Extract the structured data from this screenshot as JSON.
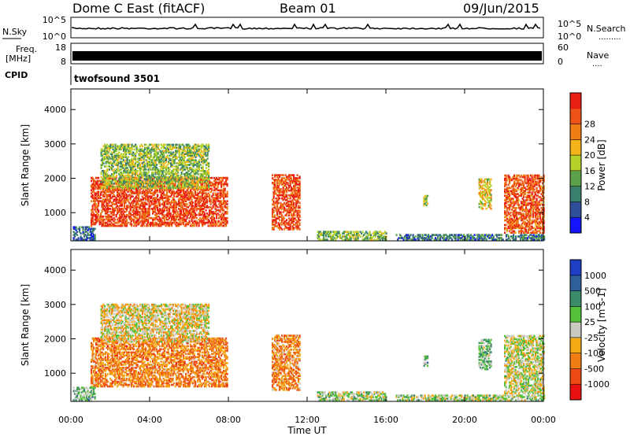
{
  "header": {
    "title": "Dome C East (fitACF)",
    "beam": "Beam 01",
    "date": "09/Jun/2015"
  },
  "noise_panel": {
    "left_label": "N.Sky",
    "right_label": "N.Search",
    "right_legend": ".........",
    "left_ticks": [
      "10^5",
      "10^0"
    ],
    "right_ticks": [
      "10^5",
      "10^0"
    ]
  },
  "freq_panel": {
    "left_label_1": "Freq.",
    "left_label_2": "[MHz]",
    "left_ticks": [
      "18",
      "8"
    ],
    "right_label": "Nave",
    "right_legend": "....",
    "right_ticks": [
      "60",
      "0"
    ]
  },
  "cpid": {
    "label": "CPID",
    "program": "twofsound 3501"
  },
  "x_axis": {
    "label": "Time UT",
    "ticks": [
      "00:00",
      "04:00",
      "08:00",
      "12:00",
      "16:00",
      "20:00",
      "00:00"
    ]
  },
  "colors": {
    "power": [
      "#1414ff",
      "#2f4f9a",
      "#3a7f6e",
      "#5ca24b",
      "#b6d22a",
      "#f5b51a",
      "#f07e14",
      "#ee5216",
      "#e81e12"
    ],
    "velocity": [
      "#e81010",
      "#ee4a14",
      "#f07e14",
      "#f5aa14",
      "#c9c9c0",
      "#55c03a",
      "#3b8c6a",
      "#2f5f9a",
      "#1e3ec4"
    ]
  },
  "chart_data": [
    {
      "type": "heatmap",
      "name": "power",
      "xlabel": "",
      "ylabel": "Slant Range [km]",
      "xlim": [
        0,
        24
      ],
      "ylim": [
        180,
        4600
      ],
      "yticks": [
        "1000",
        "2000",
        "3000",
        "4000"
      ],
      "colorbar_label": "Power [dB]",
      "colorbar_ticks": [
        "4",
        "8",
        "12",
        "16",
        "20",
        "24",
        "28"
      ],
      "regions": [
        {
          "t": [
            1.0,
            7.9
          ],
          "r": [
            600,
            2000
          ],
          "level": 0.86
        },
        {
          "t": [
            1.5,
            7.0
          ],
          "r": [
            1700,
            3000
          ],
          "level": 0.45
        },
        {
          "t": [
            0.1,
            1.2
          ],
          "r": [
            200,
            600
          ],
          "level": 0.2
        },
        {
          "t": [
            10.2,
            11.6
          ],
          "r": [
            500,
            2100
          ],
          "level": 0.85
        },
        {
          "t": [
            12.5,
            16.0
          ],
          "r": [
            200,
            450
          ],
          "level": 0.45
        },
        {
          "t": [
            20.7,
            21.3
          ],
          "r": [
            1100,
            2000
          ],
          "level": 0.55
        },
        {
          "t": [
            22.0,
            24.0
          ],
          "r": [
            400,
            2100
          ],
          "level": 0.82
        },
        {
          "t": [
            17.9,
            18.1
          ],
          "r": [
            1200,
            1500
          ],
          "level": 0.5
        },
        {
          "t": [
            16.5,
            24.0
          ],
          "r": [
            200,
            350
          ],
          "level": 0.25
        }
      ]
    },
    {
      "type": "heatmap",
      "name": "velocity",
      "xlabel": "Time UT",
      "ylabel": "Slant Range [km]",
      "xlim": [
        0,
        24
      ],
      "ylim": [
        180,
        4600
      ],
      "yticks": [
        "1000",
        "2000",
        "3000",
        "4000"
      ],
      "colorbar_label": "Velocity [m s-1]",
      "colorbar_ticks": [
        "1000",
        "500",
        "100",
        "25",
        "-25",
        "-100",
        "-500",
        "-1000"
      ],
      "regions": [
        {
          "t": [
            1.0,
            7.9
          ],
          "r": [
            600,
            2000
          ],
          "level": 0.28
        },
        {
          "t": [
            1.5,
            7.0
          ],
          "r": [
            1900,
            3000
          ],
          "level": 0.45
        },
        {
          "t": [
            0.1,
            1.2
          ],
          "r": [
            200,
            600
          ],
          "level": 0.62
        },
        {
          "t": [
            10.2,
            11.6
          ],
          "r": [
            500,
            2100
          ],
          "level": 0.3
        },
        {
          "t": [
            12.5,
            16.0
          ],
          "r": [
            200,
            450
          ],
          "level": 0.55
        },
        {
          "t": [
            20.7,
            21.3
          ],
          "r": [
            1100,
            2000
          ],
          "level": 0.6
        },
        {
          "t": [
            22.0,
            24.0
          ],
          "r": [
            400,
            2100
          ],
          "level": 0.5
        },
        {
          "t": [
            17.9,
            18.1
          ],
          "r": [
            1200,
            1500
          ],
          "level": 0.62
        },
        {
          "t": [
            16.5,
            24.0
          ],
          "r": [
            200,
            350
          ],
          "level": 0.55
        }
      ]
    }
  ]
}
